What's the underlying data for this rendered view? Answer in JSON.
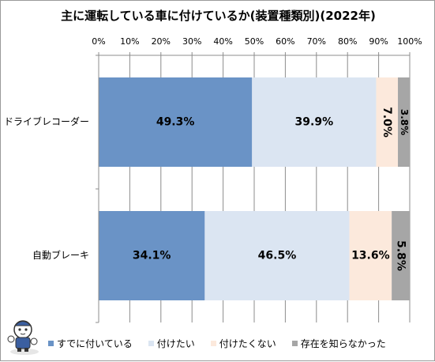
{
  "chart_data": {
    "type": "bar",
    "orientation": "horizontal",
    "stacked": true,
    "title": "主に運転している車に付けているか(装置種類別)(2022年)",
    "categories": [
      "ドライブレコーダー",
      "自動ブレーキ"
    ],
    "series": [
      {
        "name": "すでに付いている",
        "values": [
          49.3,
          34.1
        ],
        "color": "#6a93c6"
      },
      {
        "name": "付けたい",
        "values": [
          39.9,
          46.5
        ],
        "color": "#dbe5f2"
      },
      {
        "name": "付けたくない",
        "values": [
          7.0,
          13.6
        ],
        "color": "#fce9dc"
      },
      {
        "name": "存在を知らなかった",
        "values": [
          3.8,
          5.8
        ],
        "color": "#a6a6a6"
      }
    ],
    "data_labels": [
      [
        "49.3%",
        "39.9%",
        "7.0%",
        "3.8%"
      ],
      [
        "34.1%",
        "46.5%",
        "13.6%",
        "5.8%"
      ]
    ],
    "xlim": [
      0,
      100
    ],
    "x_ticks": [
      "0%",
      "10%",
      "20%",
      "30%",
      "40%",
      "50%",
      "60%",
      "70%",
      "80%",
      "90%",
      "100%"
    ],
    "xaxis_position": "top",
    "grid": true,
    "legend_position": "bottom"
  }
}
